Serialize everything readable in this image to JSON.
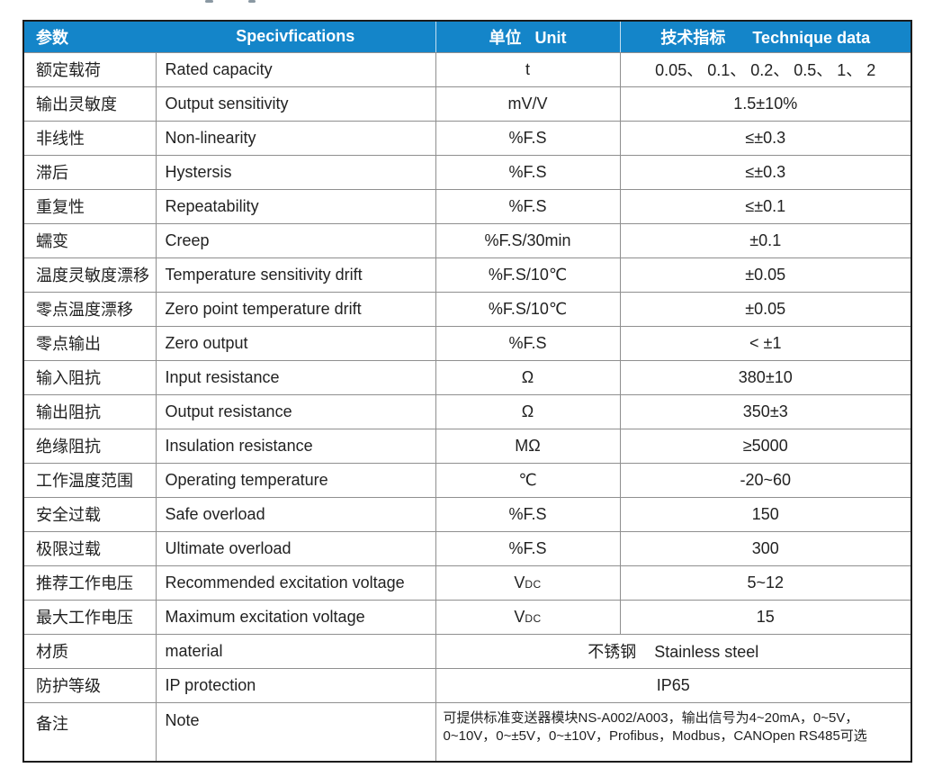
{
  "accent_colors": {
    "header_blue": "#1485c9",
    "header_text": "#ffffff",
    "grid_line": "#8f8f8f",
    "outer_border": "#1c1c1c",
    "body_text": "#222222"
  },
  "table": {
    "header": {
      "param": "参数",
      "spec": "Specivfications",
      "unit": "单位   Unit",
      "data": "技术指标      Technique data"
    },
    "rows": [
      {
        "param": "额定载荷",
        "spec": "Rated capacity",
        "unit": "t",
        "value": "0.05、 0.1、 0.2、 0.5、 1、 2"
      },
      {
        "param": "输出灵敏度",
        "spec": "Output sensitivity",
        "unit": "mV/V",
        "value": "1.5±10%"
      },
      {
        "param": "非线性",
        "spec": "Non-linearity",
        "unit": "%F.S",
        "value": "≤±0.3"
      },
      {
        "param": "滞后",
        "spec": "Hystersis",
        "unit": "%F.S",
        "value": "≤±0.3"
      },
      {
        "param": "重复性",
        "spec": "Repeatability",
        "unit": "%F.S",
        "value": "≤±0.1"
      },
      {
        "param": "蠕变",
        "spec": "Creep",
        "unit": "%F.S/30min",
        "value": "±0.1"
      },
      {
        "param": "温度灵敏度漂移",
        "spec": "Temperature sensitivity drift",
        "unit": "%F.S/10℃",
        "value": "±0.05"
      },
      {
        "param": "零点温度漂移",
        "spec": "Zero point temperature drift",
        "unit": "%F.S/10℃",
        "value": "±0.05"
      },
      {
        "param": "零点输出",
        "spec": "Zero output",
        "unit": "%F.S",
        "value": "< ±1"
      },
      {
        "param": "输入阻抗",
        "spec": "Input resistance",
        "unit": "Ω",
        "value": "380±10"
      },
      {
        "param": "输出阻抗",
        "spec": "Output resistance",
        "unit": "Ω",
        "value": "350±3"
      },
      {
        "param": "绝缘阻抗",
        "spec": "Insulation resistance",
        "unit": "MΩ",
        "value": "≥5000"
      },
      {
        "param": "工作温度范围",
        "spec": "Operating temperature",
        "unit": "℃",
        "value": "-20~60"
      },
      {
        "param": "安全过载",
        "spec": "Safe overload",
        "unit": "%F.S",
        "value": "150"
      },
      {
        "param": "极限过载",
        "spec": "Ultimate overload",
        "unit": "%F.S",
        "value": "300"
      },
      {
        "param": "推荐工作电压",
        "spec": "Recommended excitation voltage",
        "unit": {
          "main": "V",
          "sub": "DC"
        },
        "value": "5~12"
      },
      {
        "param": "最大工作电压",
        "spec": "Maximum excitation voltage",
        "unit": {
          "main": "V",
          "sub": "DC"
        },
        "value": "15"
      },
      {
        "param": "材质",
        "spec": "material",
        "merged": "不锈钢    Stainless steel"
      },
      {
        "param": "防护等级",
        "spec": "IP protection",
        "merged": "IP65"
      },
      {
        "param": "备注",
        "spec": "Note",
        "note": true,
        "merged": "可提供标准变送器模块NS-A002/A003，输出信号为4~20mA，0~5V，\n0~10V，0~±5V，0~±10V，Profibus，Modbus，CANOpen RS485可选"
      }
    ]
  }
}
